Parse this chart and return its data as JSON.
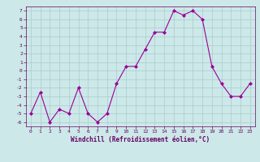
{
  "x": [
    0,
    1,
    2,
    3,
    4,
    5,
    6,
    7,
    8,
    9,
    10,
    11,
    12,
    13,
    14,
    15,
    16,
    17,
    18,
    19,
    20,
    21,
    22,
    23
  ],
  "y": [
    -5,
    -2.5,
    -6,
    -4.5,
    -5,
    -2,
    -5,
    -6,
    -5,
    -1.5,
    0.5,
    0.5,
    2.5,
    4.5,
    4.5,
    7,
    6.5,
    7,
    6,
    0.5,
    -1.5,
    -3,
    -3,
    -1.5
  ],
  "line_color": "#990099",
  "marker": "D",
  "marker_size": 2.0,
  "bg_color": "#cce8e8",
  "grid_color": "#aacccc",
  "xlabel": "Windchill (Refroidissement éolien,°C)",
  "xlabel_color": "#660066",
  "tick_color": "#660066",
  "ylim": [
    -6.5,
    7.5
  ],
  "xlim": [
    -0.5,
    23.5
  ],
  "yticks": [
    -6,
    -5,
    -4,
    -3,
    -2,
    -1,
    0,
    1,
    2,
    3,
    4,
    5,
    6,
    7
  ],
  "xticks": [
    0,
    1,
    2,
    3,
    4,
    5,
    6,
    7,
    8,
    9,
    10,
    11,
    12,
    13,
    14,
    15,
    16,
    17,
    18,
    19,
    20,
    21,
    22,
    23
  ]
}
